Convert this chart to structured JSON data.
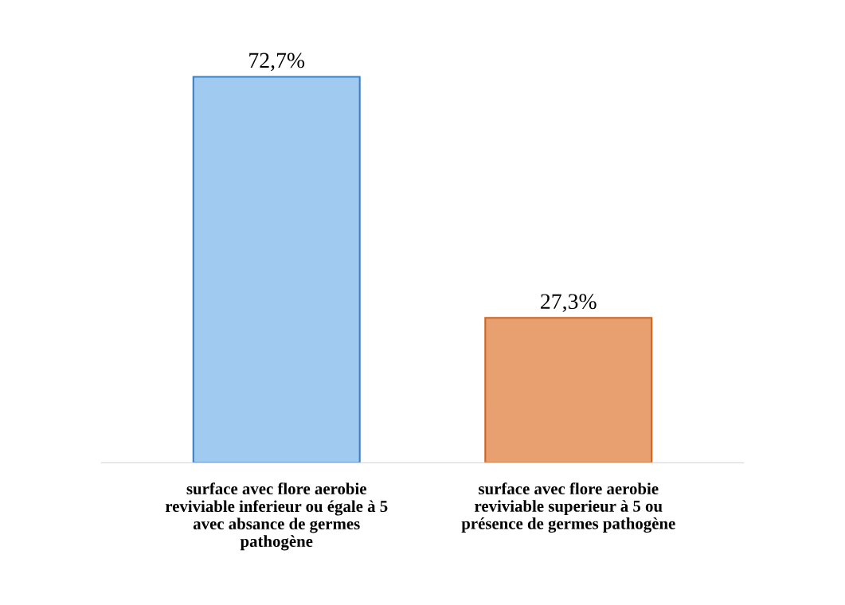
{
  "chart_data": {
    "type": "bar",
    "categories": [
      "surface avec flore aerobie\nreviviable inferieur ou égale à 5\navec absance de germes\npathogène",
      "surface avec flore aerobie\nreviviable superieur à 5 ou\nprésence de germes pathogène"
    ],
    "values": [
      72.7,
      27.3
    ],
    "colors": [
      "#a0caf0",
      "#e8a070"
    ],
    "value_labels": [
      "72,7%",
      "27,3%"
    ],
    "grid": false,
    "legend": false
  }
}
